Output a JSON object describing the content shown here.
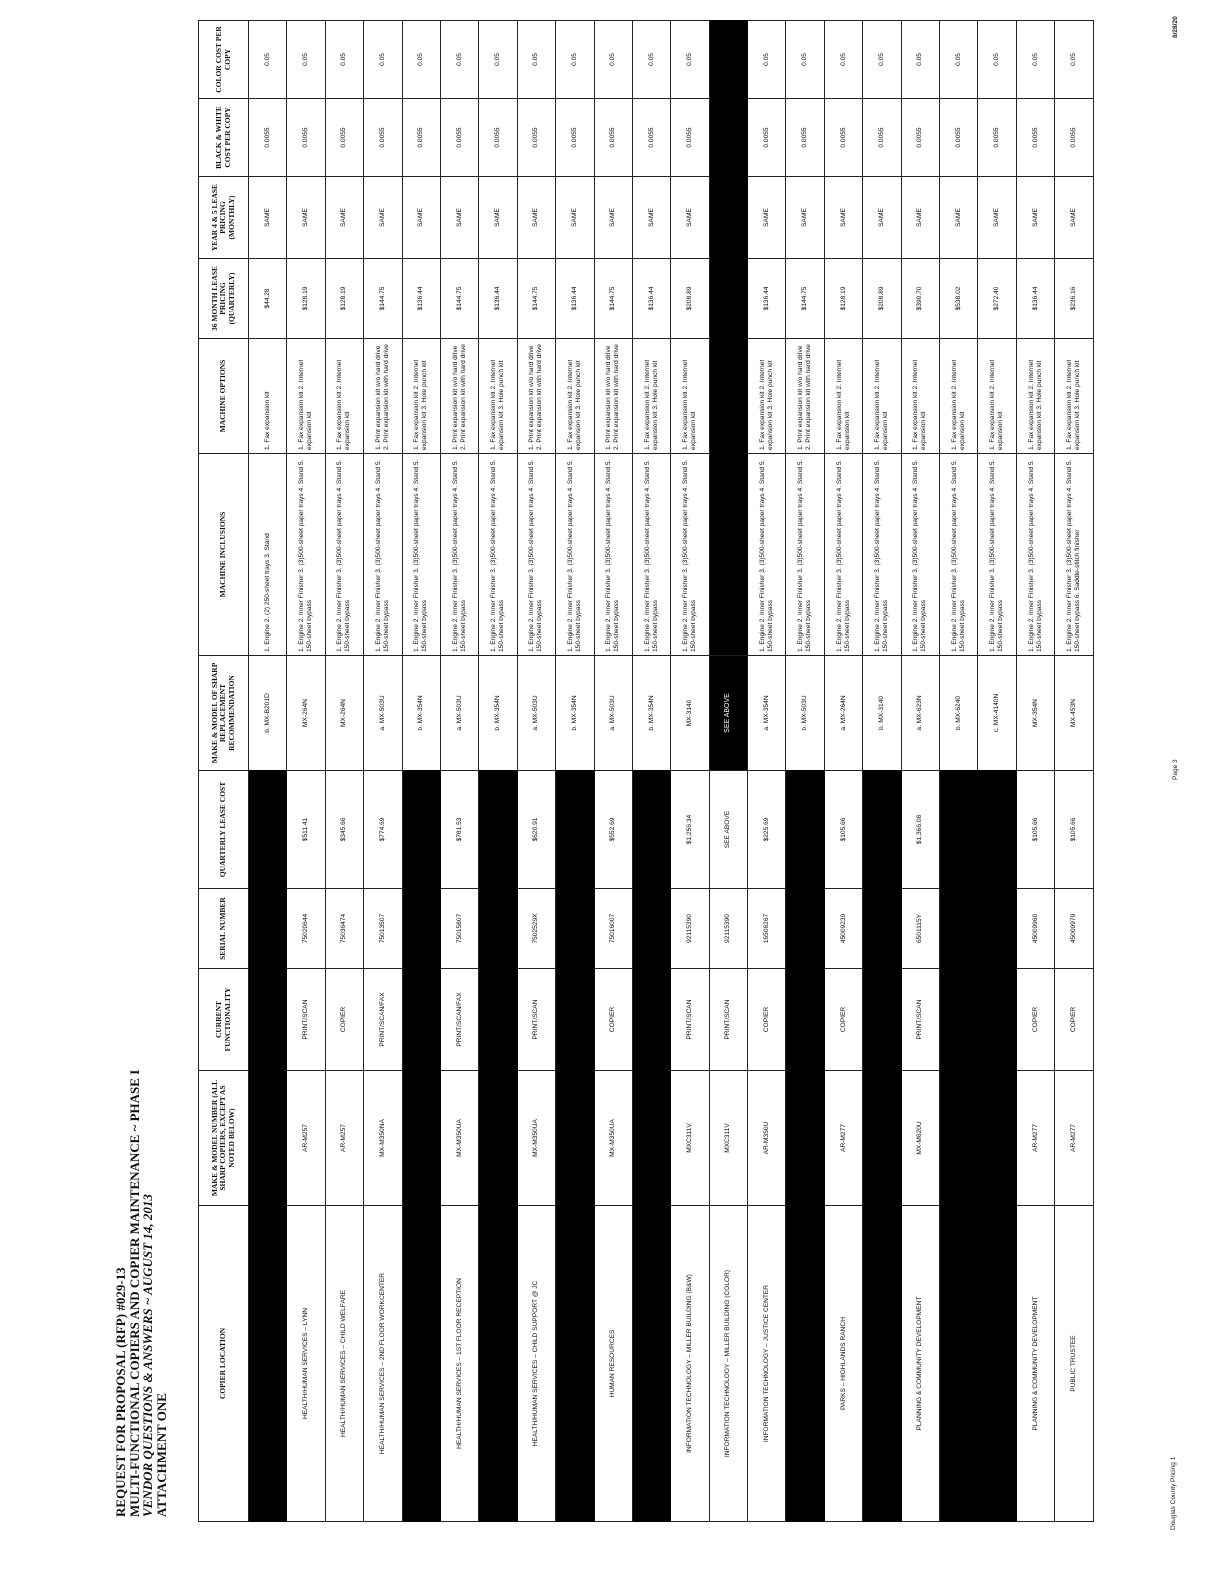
{
  "title": {
    "line1": "REQUEST FOR PROPOSAL (RFP) #029-13",
    "line2": "MULTI-FUNCTIONAL COPIERS AND COPIER MAINTENANCE ~ PHASE I",
    "line3": "VENDOR QUESTIONS & ANSWERS ~ AUGUST 14, 2013",
    "line4": "ATTACHMENT ONE"
  },
  "columns": [
    "COPIER LOCATION",
    "MAKE & MODEL NUMBER (ALL SHARP COPIERS, EXCEPT AS NOTED BELOW)",
    "CURRENT FUNCTIONALITY",
    "SERIAL NUMBER",
    "QUARTERLY LEASE COST",
    "MAKE & MODEL OF SHARP REPLACEMENT RECOMMENDATION",
    "MACHINE INCLUSIONS",
    "MACHINE OPTIONS",
    "36 MONTH LEASE PRICING (QUARTERLY)",
    "YEAR 4 & 5 LEASE PRICING (MONTHLY)",
    "BLACK & WHITE COST PER COPY",
    "COLOR COST PER COPY"
  ],
  "rows": [
    {
      "left": null,
      "right": [
        "b. MX-B201D",
        "1. Engine 2. (2) 250-sheet trays 3. Stand",
        "1. Fax expansion kit",
        "$44.28",
        "SAME",
        "0.0055",
        "0.05"
      ]
    },
    {
      "left": [
        "HEALTH/HUMAN SERVICES – LYNN",
        "AR-M257",
        "PRINT/SCAN",
        "75020644",
        "$511.41"
      ],
      "right": [
        "MX-264N",
        "1. Engine 2. Inner Finisher 3. (3)500-sheet paper trays 4. Stand 5. 150-sheet bypass",
        "1. Fax expansion kit 2. Internet expansion kit",
        "$128.19",
        "SAME",
        "0.0055",
        "0.05"
      ]
    },
    {
      "left": [
        "HEALTH/HUMAN SERVICES – CHILD WELFARE",
        "AR-M257",
        "COPIER",
        "75036474",
        "$345.66"
      ],
      "right": [
        "MX-264N",
        "1. Engine 2. Inner Finisher 3. (3)500-sheet paper trays 4. Stand 5. 150-sheet bypass",
        "1. Fax expansion kit 2. Internet expansion kit",
        "$128.19",
        "SAME",
        "0.0055",
        "0.05"
      ]
    },
    {
      "left": [
        "HEALTH/HUMAN SERVICES – 2ND FLOOR WORKCENTER",
        "MX-M350NA",
        "PRINT/SCAN/FAX",
        "75013507",
        "$774.69"
      ],
      "right": [
        "a. MX-503U",
        "1. Engine 2. Inner Finisher 3. (3)500-sheet paper trays 4. Stand 5. 150-sheet bypass",
        "1. Print expansion kit w/o hard drive 2. Print expansion kit with hard drive",
        "$144.75",
        "SAME",
        "0.0055",
        "0.05"
      ]
    },
    {
      "left": null,
      "right": [
        "b. MX-354N",
        "1. Engine 2. Inner Finisher 3. (3)500-sheet paper trays 4. Stand 5. 150-sheet bypass",
        "1. Fax expansion kit 2. Internet expansion kit 3. Hole punch kit",
        "$136.44",
        "SAME",
        "0.0055",
        "0.05"
      ]
    },
    {
      "left": [
        "HEALTH/HUMAN SERVICES – 1ST FLOOR RECEPTION",
        "MX-M350UA",
        "PRINT/SCAN/FAX",
        "75015807",
        "$781.53"
      ],
      "right": [
        "a. MX-503U",
        "1. Engine 2. Inner Finisher 3. (3)500-sheet paper trays 4. Stand 5. 150-sheet bypass",
        "1. Print expansion kit w/o hard drive 2. Print expansion kit with hard drive",
        "$144.75",
        "SAME",
        "0.0055",
        "0.05"
      ]
    },
    {
      "left": null,
      "right": [
        "b. MX-354N",
        "1. Engine 2. Inner Finisher 3. (3)500-sheet paper trays 4. Stand 5. 150-sheet bypass",
        "1. Fax expansion kit 2. Internet expansion kit 3. Hole punch kit",
        "$136.44",
        "SAME",
        "0.0055",
        "0.05"
      ]
    },
    {
      "left": [
        "HEALTH/HUMAN SERVICES – CHILD SUPPORT @ JC",
        "MX-M350UA",
        "PRINT/SCAN",
        "7502529X",
        "$620.91"
      ],
      "right": [
        "a. MX-503U",
        "1. Engine 2. Inner Finisher 3. (3)500-sheet paper trays 4. Stand 5. 150-sheet bypass",
        "1. Print expansion kit w/o hard drive 2. Print expansion kit with hard drive",
        "$144.75",
        "SAME",
        "0.0055",
        "0.05"
      ]
    },
    {
      "left": null,
      "right": [
        "b. MX-354N",
        "1. Engine 2. Inner Finisher 3. (3)500-sheet paper trays 4. Stand 5. 150-sheet bypass",
        "1. Fax expansion kit 2. Internet expansion kit 3. Hole punch kit",
        "$136.44",
        "SAME",
        "0.0055",
        "0.05"
      ]
    },
    {
      "left": [
        "HUMAN RESOURCES",
        "MX-M350UA",
        "COPIER",
        "75016007",
        "$552.69"
      ],
      "right": [
        "a. MX-503U",
        "1. Engine 2. Inner Finisher 3. (3)500-sheet paper trays 4. Stand 5. 150-sheet bypass",
        "1. Print expansion kit w/o hard drive 2. Print expansion kit with hard drive",
        "$144.75",
        "SAME",
        "0.0055",
        "0.05"
      ]
    },
    {
      "left": null,
      "right": [
        "b. MX-354N",
        "1. Engine 2. Inner Finisher 3. (3)500-sheet paper trays 4. Stand 5. 150-sheet bypass",
        "1. Fax expansion kit 2. Internet expansion kit 3. Hole punch kit",
        "$136.44",
        "SAME",
        "0.0055",
        "0.05"
      ]
    },
    {
      "left": [
        "INFORMATION TECHNOLOGY – MILLER BUILDING (B&W)",
        "MXC311V",
        "PRINT/SCAN",
        "92115390",
        "$1,256.34"
      ],
      "right": [
        "MX-3140",
        "1. Engine 2. Inner Finisher 3. (3)500-sheet paper trays 4. Stand 5. 150-sheet bypass",
        "1. Fax expansion kit 2. Internet expansion kit",
        "$208.89",
        "SAME",
        "0.0055",
        "0.05"
      ]
    },
    {
      "left": [
        "INFORMATION TECHNOLOGY – MILLER BUILDING (COLOR)",
        "MXC311V",
        "PRINT/SCAN",
        "92115390",
        "SEE ABOVE"
      ],
      "see_above": "SEE ABOVE"
    },
    {
      "left": [
        "INFORMATION TECHNOLOGY – JUSTICE CENTER",
        "AR-M350U",
        "COPIER",
        "16506267",
        "$225.69"
      ],
      "right": [
        "a. MX-354N",
        "1. Engine 2. Inner Finisher 3. (3)500-sheet paper trays 4. Stand 5. 150-sheet bypass",
        "1. Fax expansion kit 2. Internet expansion kit 3. Hole punch kit",
        "$136.44",
        "SAME",
        "0.0055",
        "0.05"
      ]
    },
    {
      "left": null,
      "right": [
        "b. MX-503U",
        "1. Engine 2. Inner Finisher 3. (3)500-sheet paper trays 4. Stand 5. 150-sheet bypass",
        "1. Print expansion kit w/o hard drive 2. Print expansion kit with hard drive",
        "$144.75",
        "SAME",
        "0.0055",
        "0.05"
      ]
    },
    {
      "left": [
        "PARKS – HIGHLANDS RANCH",
        "AR-M277",
        "COPIER",
        "45009239",
        "$105.66"
      ],
      "right": [
        "a. MX-264N",
        "1. Engine 2. Inner Finisher 3. (3)500-sheet paper trays 4. Stand 5. 150-sheet bypass",
        "1. Fax expansion kit 2. Internet expansion kit",
        "$128.19",
        "SAME",
        "0.0055",
        "0.05"
      ]
    },
    {
      "left": null,
      "right": [
        "b. MX-3140",
        "1. Engine 2. Inner Finisher 3. (3)500-sheet paper trays 4. Stand 5. 150-sheet bypass",
        "1. Fax expansion kit 2. Internet expansion kit",
        "$208.89",
        "SAME",
        "0.0055",
        "0.05"
      ]
    },
    {
      "left": [
        "PLANNING & COMMUNITY DEVELOPMENT",
        "MX-M620U",
        "PRINT/SCAN",
        "6501115Y",
        "$1,366.08"
      ],
      "right": [
        "a. MX-623N",
        "1. Engine 2. Inner Finisher 3. (3)500-sheet paper trays 4. Stand 5. 150-sheet bypass",
        "1. Fax expansion kit 2. Internet expansion kit",
        "$390.70",
        "SAME",
        "0.0055",
        "0.05"
      ]
    },
    {
      "left": null,
      "right": [
        "b. MX-6240",
        "1. Engine 2. Inner Finisher 3. (3)500-sheet paper trays 4. Stand 5. 150-sheet bypass",
        "1. Fax expansion kit 2. Internet expansion kit",
        "$538.02",
        "SAME",
        "0.0055",
        "0.05"
      ]
    },
    {
      "left": null,
      "right": [
        "c. MX-4140N",
        "1. Engine 2. Inner Finisher 3. (3)500-sheet paper trays 4. Stand 5. 150-sheet bypass",
        "1. Fax expansion kit 2. Internet expansion kit",
        "$272.40",
        "SAME",
        "0.0055",
        "0.05"
      ]
    },
    {
      "left": [
        "PLANNING & COMMUNITY DEVELOPMENT",
        "AR-M277",
        "COPIER",
        "45009960",
        "$105.66"
      ],
      "right": [
        "MX-354N",
        "1. Engine 2. Inner Finisher 3. (3)500-sheet paper trays 4. Stand 5. 150-sheet bypass",
        "1. Fax expansion kit 2. Internet expansion kit 3. Hole punch kit",
        "$136.44",
        "SAME",
        "0.0055",
        "0.05"
      ]
    },
    {
      "left": [
        "PUBLIC TRUSTEE",
        "AR-M277",
        "COPIER",
        "45009979",
        "$105.66"
      ],
      "right": [
        "MX-453N",
        "1. Engine 2. Inner Finisher 3. (3)500-sheet paper trays 4. Stand 5. 150-sheet bypass 6. Saddle-stitch finisher",
        "1. Fax expansion kit 2. Internet expansion kit 3. Hole punch kit",
        "$236.16",
        "SAME",
        "0.0055",
        "0.05"
      ]
    }
  ],
  "footer": {
    "left": "Douglas County Pricing 1",
    "center": "Page 3",
    "right": "8/28/20"
  }
}
